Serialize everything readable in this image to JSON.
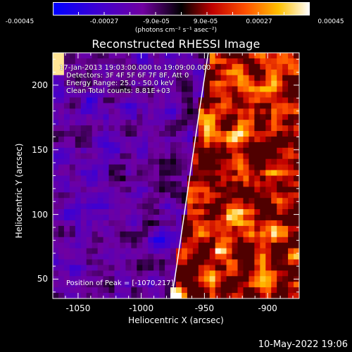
{
  "colorbar": {
    "ticks": [
      "-0.00045",
      "-0.00027",
      "-9.0e-05",
      "9.0e-05",
      "0.00027",
      "0.00045"
    ],
    "unit": "(photons cm⁻² s⁻¹ asec⁻²)",
    "range": [
      -0.00045,
      0.00045
    ],
    "colors": [
      "#0000ff",
      "#5a00c8",
      "#7a00a0",
      "#000000",
      "#ff0000",
      "#ff9a00",
      "#ffff60",
      "#ffffff"
    ]
  },
  "chart_data": {
    "type": "heatmap",
    "title": "Reconstructed RHESSI Image",
    "xlabel": "Heliocentric X (arcsec)",
    "ylabel": "Heliocentric Y (arcsec)",
    "xlim": [
      -1070,
      -875
    ],
    "ylim": [
      35,
      225
    ],
    "xticks": [
      -1050,
      -1000,
      -950,
      -900
    ],
    "yticks": [
      50,
      100,
      150,
      200
    ],
    "xtick_labels": [
      "-1050",
      "-1000",
      "-950",
      "-900"
    ],
    "ytick_labels": [
      "50",
      "100",
      "150",
      "200"
    ],
    "info_lines": [
      "17-Jan-2013 19:03:00.000 to 19:09:00.000",
      "Detectors: 3F 4F 5F 6F 7F 8F, Att 0",
      "Energy Range: 25.0 - 50.0 keV",
      "Clean     Total counts: 8.81E+03"
    ],
    "peak_label": "Position of Peak = [-1070,217]",
    "limb_curve": [
      [
        -976,
        35
      ],
      [
        -972,
        60
      ],
      [
        -966,
        100
      ],
      [
        -960,
        140
      ],
      [
        -954,
        180
      ],
      [
        -947,
        225
      ]
    ]
  },
  "footer": {
    "date": "10-May-2022 19:06"
  }
}
